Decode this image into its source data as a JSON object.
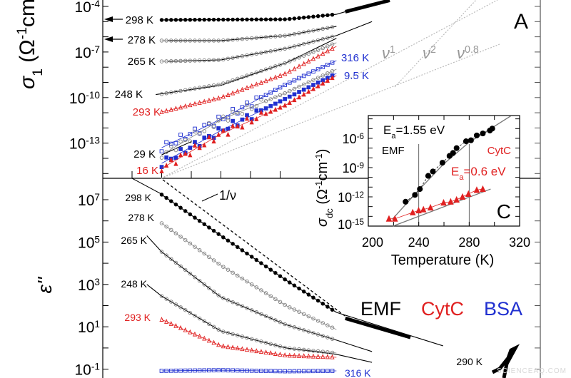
{
  "chart_data": [
    {
      "type": "line",
      "panel_label": "A",
      "ylabel": {
        "symbol": "σ",
        "sub": "1",
        "unit_open": " (Ω",
        "exp1": "-1",
        "mid": "cm",
        "exp2": "-1",
        "close": ")"
      },
      "yscale": "log",
      "ylim_log10": [
        -15.4,
        -3.6
      ],
      "yticks": [
        {
          "base": "10",
          "exp": "-4",
          "value": -4
        },
        {
          "base": "10",
          "exp": "-7",
          "value": -7
        },
        {
          "base": "10",
          "exp": "-10",
          "value": -10
        },
        {
          "base": "10",
          "exp": "-13",
          "value": -13
        }
      ],
      "power_law_guides": [
        {
          "label": "ν",
          "exp": "1"
        },
        {
          "label": "ν",
          "exp": "2"
        },
        {
          "label": "ν",
          "exp": "0.8"
        }
      ],
      "series": [
        {
          "name": "298 K",
          "sample": "EMF",
          "marker": "filled-circle",
          "color": "#000000",
          "points": [
            [
              1,
              -4.89
            ],
            [
              3,
              -4.87
            ],
            [
              5.2,
              -4.85
            ],
            [
              6.9,
              -4.52
            ]
          ],
          "fit": [
            [
              1,
              -4.89
            ],
            [
              5.2,
              -4.85
            ],
            [
              6.9,
              -4.52
            ],
            [
              7.2,
              -4.35
            ]
          ],
          "extension": [
            [
              7.2,
              -4.35
            ],
            [
              8.7,
              -3.6
            ]
          ]
        },
        {
          "name": "278 K",
          "sample": "EMF",
          "marker": "open-circle",
          "color": "#808080",
          "points": [
            [
              1,
              -6.25
            ],
            [
              3,
              -6.25
            ],
            [
              5.2,
              -5.92
            ],
            [
              6.9,
              -5.31
            ]
          ],
          "fit": [
            [
              1.2,
              -6.25
            ],
            [
              3,
              -6.25
            ],
            [
              5.2,
              -5.92
            ],
            [
              6.9,
              -5.31
            ]
          ]
        },
        {
          "name": "265 K",
          "sample": "EMF",
          "marker": "open-circle",
          "color": "#808080",
          "points": [
            [
              1,
              -7.62
            ],
            [
              3,
              -7.52
            ],
            [
              5.2,
              -6.77
            ],
            [
              6.9,
              -5.92
            ]
          ],
          "fit": [
            [
              1.2,
              -7.62
            ],
            [
              3,
              -7.52
            ],
            [
              5.2,
              -6.77
            ],
            [
              6.9,
              -5.92
            ],
            [
              8.1,
              -5.0
            ]
          ]
        },
        {
          "name": "248 K",
          "sample": "EMF",
          "marker": "open-circle",
          "color": "#808080",
          "points": [
            [
              1,
              -9.77
            ],
            [
              3,
              -9.12
            ],
            [
              5.2,
              -7.71
            ],
            [
              6.9,
              -6.39
            ]
          ],
          "fit": [
            [
              0.8,
              -9.8
            ],
            [
              3,
              -9.2
            ],
            [
              5.2,
              -7.71
            ],
            [
              6.9,
              -6.1
            ]
          ]
        },
        {
          "name": "293 K",
          "sample": "CytC",
          "marker": "open-triangle",
          "color": "#e02020",
          "points": [
            [
              1,
              -10.95
            ],
            [
              3,
              -10.0
            ],
            [
              5.2,
              -8.41
            ],
            [
              6.9,
              -6.63
            ]
          ]
        },
        {
          "name": "316 K",
          "sample": "BSA",
          "marker": "open-square",
          "color": "#2030d0",
          "points": [
            [
              1,
              -13.3
            ],
            [
              3,
              -11.42
            ],
            [
              5.2,
              -9.12
            ],
            [
              6.9,
              -7.57
            ]
          ]
        },
        {
          "name": "29 K",
          "sample": "EMF",
          "marker": "open-circle",
          "color": "#808080",
          "points": [
            [
              1,
              -13.77
            ],
            [
              3,
              -11.46
            ],
            [
              5.2,
              -9.68
            ],
            [
              6.9,
              -8.13
            ]
          ],
          "fit": [
            [
              1,
              -13.77
            ],
            [
              2,
              -12.9
            ]
          ]
        },
        {
          "name": "9.5 K",
          "sample": "BSA",
          "marker": "filled-square",
          "color": "#2030d0",
          "points": [
            [
              1,
              -14.33
            ],
            [
              3,
              -12.17
            ],
            [
              5.2,
              -10.06
            ],
            [
              6.9,
              -8.41
            ]
          ]
        },
        {
          "name": "16 K",
          "sample": "CytC",
          "marker": "filled-triangle",
          "color": "#e02020",
          "points": [
            [
              1,
              -14.66
            ],
            [
              3,
              -12.4
            ],
            [
              5.2,
              -10.48
            ],
            [
              6.9,
              -8.55
            ]
          ]
        }
      ]
    },
    {
      "type": "line",
      "ylabel": {
        "symbol": "ε''"
      },
      "yscale": "log",
      "ylim_log10": [
        -1.4,
        7.3
      ],
      "yticks": [
        {
          "base": "10",
          "exp": "7",
          "value": 7
        },
        {
          "base": "10",
          "exp": "5",
          "value": 5
        },
        {
          "base": "10",
          "exp": "3",
          "value": 3
        },
        {
          "base": "10",
          "exp": "1",
          "value": 1
        },
        {
          "base": "10",
          "exp": "-1",
          "value": -1
        }
      ],
      "guide_label": "1/ν",
      "legend": [
        {
          "label": "EMF",
          "color": "#000000"
        },
        {
          "label": "CytC",
          "color": "#e02020"
        },
        {
          "label": "BSA",
          "color": "#2030d0"
        }
      ],
      "extra_label": "290 K",
      "series": [
        {
          "name": "298 K",
          "sample": "EMF",
          "marker": "filled-circle",
          "color": "#000000",
          "points": [
            [
              1,
              7.24
            ],
            [
              3,
              5.3
            ],
            [
              5.2,
              3.2
            ],
            [
              6.9,
              1.68
            ]
          ],
          "fit": [
            [
              1,
              7.24
            ],
            [
              3,
              5.3
            ],
            [
              5.2,
              3.2
            ],
            [
              6.9,
              1.68
            ],
            [
              10.5,
              0.1
            ]
          ],
          "extension": [
            [
              7.2,
              1.4
            ],
            [
              9.4,
              0.5
            ]
          ]
        },
        {
          "name": "278 K",
          "sample": "EMF",
          "marker": "open-circle",
          "color": "#808080",
          "points": [
            [
              1,
              5.89
            ],
            [
              3,
              3.9
            ],
            [
              5.2,
              2.0
            ],
            [
              6.9,
              0.87
            ]
          ]
        },
        {
          "name": "265 K",
          "sample": "EMF",
          "marker": "open-circle",
          "color": "#808080",
          "points": [
            [
              1,
              4.54
            ],
            [
              3,
              2.4
            ],
            [
              5.2,
              1.1
            ],
            [
              6.9,
              0.37
            ]
          ],
          "fit": [
            [
              0.5,
              5.3
            ],
            [
              1,
              4.54
            ],
            [
              3,
              2.4
            ],
            [
              5.2,
              1.1
            ],
            [
              6.9,
              0.37
            ],
            [
              8.1,
              -0.17
            ]
          ]
        },
        {
          "name": "248 K",
          "sample": "EMF",
          "marker": "open-circle",
          "color": "#808080",
          "points": [
            [
              1,
              2.45
            ],
            [
              3,
              0.8
            ],
            [
              5.2,
              0.0
            ],
            [
              6.9,
              -0.24
            ]
          ],
          "fit": [
            [
              0.5,
              3.0
            ],
            [
              1,
              2.45
            ],
            [
              3,
              0.8
            ],
            [
              5.2,
              0.0
            ],
            [
              6.9,
              -0.3
            ],
            [
              8.1,
              -0.68
            ]
          ]
        },
        {
          "name": "293 K",
          "sample": "CytC",
          "marker": "open-triangle",
          "color": "#e02020",
          "points": [
            [
              1,
              1.34
            ],
            [
              3,
              0.1
            ],
            [
              5.2,
              -0.35
            ],
            [
              6.9,
              -0.44
            ]
          ]
        },
        {
          "name": "316 K",
          "sample": "BSA",
          "marker": "open-square",
          "color": "#2030d0",
          "points": [
            [
              1,
              -1.08
            ],
            [
              3,
              -1.05
            ],
            [
              5.2,
              -1.1
            ],
            [
              6.9,
              -1.08
            ]
          ]
        }
      ]
    },
    {
      "type": "scatter",
      "panel_label": "C",
      "xlabel": "Temperature (K)",
      "ylabel": {
        "symbol": "σ",
        "sub": "dc",
        "unit_open": " (Ω",
        "exp1": "-1",
        "mid": "cm",
        "exp2": "-1",
        "close": ")"
      },
      "xlim": [
        200,
        320
      ],
      "xticks": [
        "200",
        "240",
        "280",
        "320"
      ],
      "yscale": "log",
      "ylim_log10": [
        -15,
        -3.7
      ],
      "yticks": [
        {
          "base": "10",
          "exp": "-6",
          "value": -6
        },
        {
          "base": "10",
          "exp": "-9",
          "value": -9
        },
        {
          "base": "10",
          "exp": "-12",
          "value": -12
        },
        {
          "base": "10",
          "exp": "-15",
          "value": -15
        }
      ],
      "vlines": [
        240,
        280
      ],
      "annotations": {
        "emf_ea": {
          "pre": "E",
          "sub": "a",
          "post": "=1.55 eV"
        },
        "emf": "EMF",
        "cytc": "CytC",
        "cytc_ea": {
          "pre": "E",
          "sub": "a",
          "post": "=0.6 eV"
        }
      },
      "series": [
        {
          "name": "EMF",
          "color": "#000000",
          "marker": "filled-circle",
          "points": [
            [
              229.6,
              -12.5
            ],
            [
              237,
              -11.8
            ],
            [
              240.9,
              -11.2
            ],
            [
              247.5,
              -9.85
            ],
            [
              251.2,
              -9.4
            ],
            [
              258.8,
              -8.5
            ],
            [
              264.4,
              -7.8
            ],
            [
              267.2,
              -7.5
            ],
            [
              270,
              -7.0
            ],
            [
              277.5,
              -6.3
            ],
            [
              281.4,
              -6.2
            ],
            [
              286,
              -5.7
            ],
            [
              290.8,
              -5.5
            ],
            [
              296.4,
              -5.2
            ],
            [
              298.3,
              -5.0
            ]
          ],
          "fit": [
            [
              219,
              -14.3
            ],
            [
              240,
              -11.3
            ],
            [
              260,
              -8.6
            ],
            [
              280,
              -6.4
            ],
            [
              313,
              -3.7
            ]
          ]
        },
        {
          "name": "CytC",
          "color": "#e02020",
          "marker": "filled-triangle",
          "points": [
            [
              216.4,
              -14.25
            ],
            [
              221.1,
              -14.25
            ],
            [
              235.2,
              -13.6
            ],
            [
              239.9,
              -13.4
            ],
            [
              243.7,
              -13.3
            ],
            [
              249.3,
              -13.1
            ],
            [
              259.7,
              -12.6
            ],
            [
              265.3,
              -12.5
            ],
            [
              270,
              -12.3
            ],
            [
              274.7,
              -12.0
            ],
            [
              279.4,
              -11.7
            ],
            [
              286,
              -11.3
            ],
            [
              290.8,
              -11.2
            ]
          ],
          "fit": [
            [
              219.6,
              -15.0
            ],
            [
              297,
              -11.2
            ]
          ]
        }
      ]
    }
  ],
  "watermark": "SCIENCEAQ.COM"
}
